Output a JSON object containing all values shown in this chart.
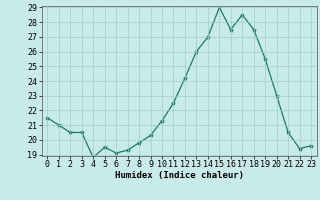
{
  "x": [
    0,
    1,
    2,
    3,
    4,
    5,
    6,
    7,
    8,
    9,
    10,
    11,
    12,
    13,
    14,
    15,
    16,
    17,
    18,
    19,
    20,
    21,
    22,
    23
  ],
  "y": [
    21.5,
    21.0,
    20.5,
    20.5,
    18.8,
    19.5,
    19.1,
    19.3,
    19.8,
    20.3,
    21.3,
    22.5,
    24.2,
    26.0,
    27.0,
    29.0,
    27.5,
    28.5,
    27.5,
    25.5,
    23.0,
    20.5,
    19.4,
    19.6
  ],
  "line_color": "#1a7a6a",
  "marker": "*",
  "marker_color": "#1a7a6a",
  "bg_color": "#c8ebe8",
  "grid_color": "#a0cfc8",
  "xlabel": "Humidex (Indice chaleur)",
  "ylim": [
    19,
    29
  ],
  "xlim": [
    -0.5,
    23.5
  ],
  "yticks": [
    19,
    20,
    21,
    22,
    23,
    24,
    25,
    26,
    27,
    28,
    29
  ],
  "xticks": [
    0,
    1,
    2,
    3,
    4,
    5,
    6,
    7,
    8,
    9,
    10,
    11,
    12,
    13,
    14,
    15,
    16,
    17,
    18,
    19,
    20,
    21,
    22,
    23
  ],
  "label_fontsize": 6.5,
  "tick_fontsize": 6.0
}
